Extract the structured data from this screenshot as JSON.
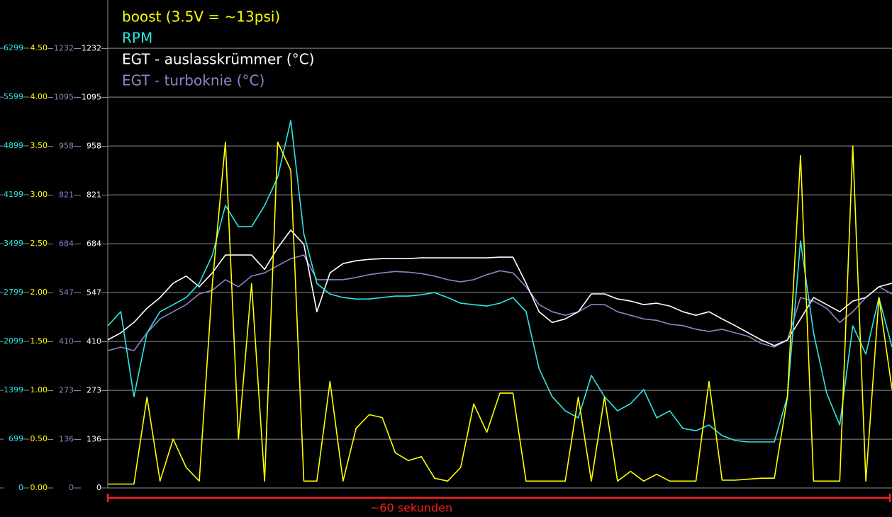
{
  "chart_data": {
    "type": "line",
    "x": [
      0,
      1,
      2,
      3,
      4,
      5,
      6,
      7,
      8,
      9,
      10,
      11,
      12,
      13,
      14,
      15,
      16,
      17,
      18,
      19,
      20,
      21,
      22,
      23,
      24,
      25,
      26,
      27,
      28,
      29,
      30,
      31,
      32,
      33,
      34,
      35,
      36,
      37,
      38,
      39,
      40,
      41,
      42,
      43,
      44,
      45,
      46,
      47,
      48,
      49,
      50,
      51,
      52,
      53,
      54,
      55,
      56,
      57,
      58,
      59,
      60
    ],
    "xlim": [
      0,
      60
    ],
    "axes": [
      {
        "color": "#2ee6e6",
        "ylim": [
          0,
          7000
        ],
        "yticks": [
          0,
          699,
          1399,
          2099,
          2799,
          3499,
          4199,
          4899,
          5599,
          6299
        ]
      },
      {
        "color": "#ffff00",
        "ylim": [
          0,
          5
        ],
        "yticks": [
          {
            "value": 0,
            "label": "0.00"
          },
          {
            "value": 0.5,
            "label": "0.50"
          },
          {
            "value": 1,
            "label": "1.00"
          },
          {
            "value": 1.5,
            "label": "1.50"
          },
          {
            "value": 2,
            "label": "2.00"
          },
          {
            "value": 2.5,
            "label": "2.50"
          },
          {
            "value": 3,
            "label": "3.00"
          },
          {
            "value": 3.5,
            "label": "3.50"
          },
          {
            "value": 4,
            "label": "4.00"
          },
          {
            "value": 4.5,
            "label": "4.50"
          }
        ]
      },
      {
        "color": "#8a84c8",
        "ylim": [
          0,
          1370
        ],
        "yticks": [
          0,
          136,
          273,
          410,
          547,
          684,
          821,
          958,
          1095,
          1232
        ]
      },
      {
        "color": "#ffffff",
        "ylim": [
          0,
          1370
        ],
        "yticks": [
          0,
          136,
          273,
          410,
          547,
          684,
          821,
          958,
          1095,
          1232
        ]
      }
    ],
    "series": [
      {
        "name": "boost (3.5V = ~13psi)",
        "color": "#ffff00",
        "axis": 1,
        "values": [
          0.04,
          0.04,
          0.04,
          0.93,
          0.07,
          0.5,
          0.21,
          0.07,
          2.09,
          3.54,
          0.5,
          2.09,
          0.07,
          3.54,
          3.25,
          0.07,
          0.07,
          1.09,
          0.07,
          0.61,
          0.75,
          0.72,
          0.36,
          0.28,
          0.32,
          0.1,
          0.07,
          0.21,
          0.86,
          0.57,
          0.97,
          0.97,
          0.07,
          0.07,
          0.07,
          0.07,
          0.93,
          0.07,
          0.93,
          0.07,
          0.17,
          0.07,
          0.14,
          0.07,
          0.07,
          0.07,
          1.09,
          0.08,
          0.08,
          0.09,
          0.1,
          0.1,
          0.93,
          3.4,
          0.07,
          0.07,
          0.07,
          3.5,
          0.07,
          1.95,
          1.01
        ]
      },
      {
        "name": "RPM",
        "color": "#2ee6e6",
        "axis": 0,
        "values": [
          2322,
          2525,
          1308,
          2221,
          2525,
          2626,
          2728,
          2930,
          3336,
          4046,
          3742,
          3742,
          4046,
          4451,
          5263,
          3640,
          2930,
          2778,
          2728,
          2707,
          2707,
          2728,
          2748,
          2748,
          2768,
          2799,
          2728,
          2647,
          2626,
          2606,
          2647,
          2728,
          2525,
          1708,
          1308,
          1105,
          1004,
          1612,
          1308,
          1105,
          1207,
          1409,
          1004,
          1105,
          852,
          821,
          902,
          750,
          680,
          659,
          659,
          659,
          1308,
          3539,
          2221,
          1359,
          902,
          2322,
          1916,
          2728,
          2018
        ]
      },
      {
        "name": "EGT - auslasskrümmer (°C)",
        "color": "#ffffff",
        "axis": 3,
        "values": [
          415,
          435,
          464,
          504,
          534,
          574,
          594,
          564,
          603,
          653,
          653,
          653,
          613,
          673,
          723,
          683,
          494,
          603,
          629,
          637,
          641,
          643,
          643,
          643,
          645,
          645,
          645,
          645,
          645,
          645,
          647,
          647,
          574,
          494,
          464,
          474,
          494,
          544,
          544,
          530,
          524,
          514,
          518,
          510,
          494,
          484,
          494,
          474,
          455,
          435,
          415,
          399,
          415,
          474,
          534,
          514,
          494,
          524,
          534,
          564,
          574
        ]
      },
      {
        "name": "EGT - turboknie (°C)",
        "color": "#8a84c8",
        "axis": 2,
        "values": [
          385,
          395,
          385,
          435,
          474,
          494,
          514,
          544,
          554,
          584,
          564,
          594,
          603,
          623,
          643,
          653,
          584,
          584,
          584,
          590,
          598,
          603,
          607,
          605,
          601,
          594,
          584,
          578,
          584,
          598,
          609,
          603,
          564,
          514,
          494,
          484,
          494,
          514,
          514,
          494,
          484,
          474,
          470,
          459,
          455,
          445,
          439,
          445,
          435,
          425,
          405,
          395,
          415,
          534,
          524,
          504,
          464,
          494,
          534,
          564,
          544
        ]
      }
    ],
    "grid": true,
    "annotation": "~60 sekunden",
    "annotation_color": "#ff2020"
  }
}
